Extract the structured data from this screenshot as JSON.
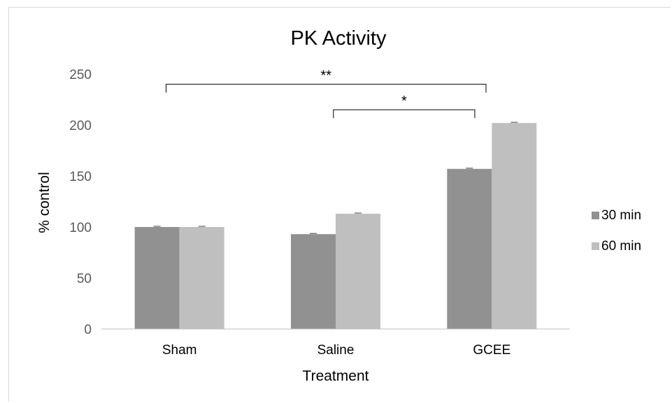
{
  "chart_data": {
    "type": "bar",
    "title": "PK Activity",
    "xlabel": "Treatment",
    "ylabel": "% control",
    "categories": [
      "Sham",
      "Saline",
      "GCEE"
    ],
    "series": [
      {
        "name": "30 min",
        "values": [
          100,
          93,
          157
        ],
        "color": "#919191"
      },
      {
        "name": "60 min",
        "values": [
          100,
          113,
          202
        ],
        "color": "#bfbfbf"
      }
    ],
    "ylim": [
      0,
      250
    ],
    "yticks": [
      0,
      50,
      100,
      150,
      200,
      250
    ],
    "grid": false,
    "legend_position": "right",
    "annotations": [
      {
        "label": "**",
        "from": "Sham",
        "to": "GCEE",
        "y": 240
      },
      {
        "label": "*",
        "from": "Saline",
        "to": "GCEE",
        "y": 215
      }
    ]
  }
}
